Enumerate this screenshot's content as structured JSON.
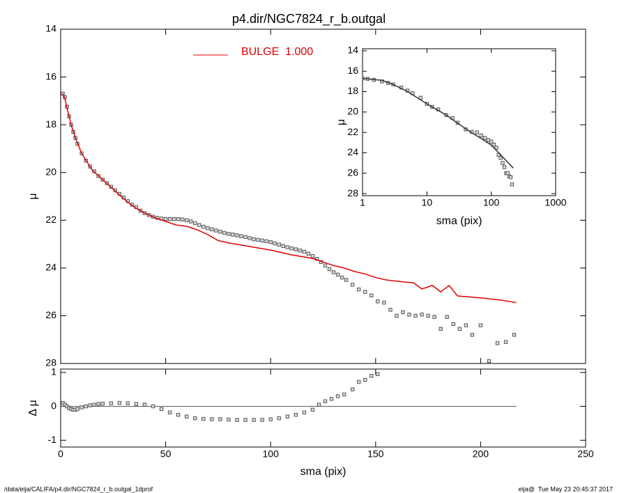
{
  "chart_data": [
    {
      "type": "scatter",
      "title": "p4.dir/NGC7824_r_b.outgal",
      "y_label": "μ",
      "legend": "top",
      "xlim": [
        0,
        250
      ],
      "xticks": [
        0,
        50,
        100,
        150,
        200,
        250
      ],
      "xtick_labels": false,
      "ylim": [
        28,
        14
      ],
      "yticks": [
        14,
        16,
        18,
        20,
        22,
        24,
        26,
        28
      ],
      "series": [
        {
          "mark": "square",
          "color": "#555555",
          "x": [
            1,
            2,
            3,
            4,
            5,
            6,
            7,
            8,
            10,
            12,
            14,
            16,
            18,
            20,
            22,
            24,
            26,
            28,
            30,
            32,
            34,
            36,
            38,
            40,
            42,
            44,
            46,
            48,
            50,
            52,
            54,
            56,
            58,
            60,
            62,
            64,
            66,
            68,
            70,
            72,
            74,
            76,
            78,
            80,
            82,
            84,
            86,
            88,
            90,
            92,
            94,
            96,
            98,
            100,
            102,
            104,
            106,
            108,
            110,
            112,
            114,
            116,
            118,
            120,
            122,
            124,
            126,
            128,
            130,
            132,
            134,
            136,
            139,
            142,
            145,
            148,
            151,
            154,
            157,
            160,
            163,
            166,
            169,
            172,
            175,
            178,
            181,
            184,
            187,
            190,
            193,
            196,
            200,
            204,
            208,
            212,
            216
          ],
          "values": [
            16.7,
            16.85,
            17.25,
            17.65,
            18.0,
            18.3,
            18.55,
            18.8,
            19.2,
            19.5,
            19.75,
            19.95,
            20.15,
            20.3,
            20.45,
            20.6,
            20.75,
            20.9,
            21.05,
            21.2,
            21.35,
            21.45,
            21.6,
            21.7,
            21.78,
            21.85,
            21.9,
            21.93,
            21.95,
            21.95,
            21.95,
            21.95,
            21.97,
            22.0,
            22.05,
            22.12,
            22.2,
            22.27,
            22.33,
            22.38,
            22.43,
            22.48,
            22.53,
            22.57,
            22.6,
            22.63,
            22.67,
            22.7,
            22.75,
            22.8,
            22.82,
            22.85,
            22.88,
            22.92,
            22.97,
            23.02,
            23.08,
            23.13,
            23.18,
            23.22,
            23.27,
            23.32,
            23.4,
            23.5,
            23.62,
            23.75,
            23.9,
            24.05,
            24.18,
            24.28,
            24.4,
            24.5,
            24.7,
            24.9,
            25.0,
            25.15,
            25.4,
            25.45,
            25.75,
            26.0,
            25.85,
            25.95,
            26.0,
            25.95,
            26.0,
            26.05,
            26.55,
            26.05,
            26.35,
            26.55,
            26.4,
            26.8,
            26.4,
            27.9,
            27.15,
            27.1,
            26.8
          ]
        },
        {
          "mark": "line",
          "name": "BULGE  1.000",
          "color": "#e00000",
          "x": [
            1,
            2,
            3,
            5,
            7,
            10,
            15,
            20,
            25,
            30,
            35,
            40,
            45,
            50,
            55,
            60,
            65,
            70,
            75,
            80,
            90,
            100,
            110,
            120,
            125,
            130,
            135,
            140,
            145,
            150,
            155,
            160,
            165,
            168,
            172,
            177,
            181,
            185,
            189,
            200,
            210,
            217
          ],
          "values": [
            16.7,
            16.9,
            17.3,
            18.0,
            18.55,
            19.2,
            19.9,
            20.3,
            20.7,
            21.1,
            21.45,
            21.7,
            21.9,
            22.05,
            22.2,
            22.25,
            22.4,
            22.6,
            22.85,
            22.95,
            23.1,
            23.25,
            23.45,
            23.6,
            23.75,
            23.9,
            24.0,
            24.15,
            24.25,
            24.4,
            24.5,
            24.55,
            24.6,
            24.62,
            24.88,
            24.73,
            25.0,
            24.73,
            25.17,
            25.25,
            25.35,
            25.45
          ]
        }
      ]
    },
    {
      "type": "scatter",
      "y_label": "Δ μ",
      "x_label": "sma (pix)",
      "xlim": [
        0,
        250
      ],
      "xticks": [
        0,
        50,
        100,
        150,
        200,
        250
      ],
      "ylim": [
        -1.2,
        1.1
      ],
      "yticks": [
        -1,
        0,
        1
      ],
      "zero_line": true,
      "series": [
        {
          "mark": "square",
          "color": "#555555",
          "x": [
            1,
            2,
            3,
            4,
            5,
            6,
            7,
            8,
            10,
            12,
            14,
            16,
            18,
            20,
            24,
            28,
            32,
            36,
            40,
            44,
            48,
            52,
            56,
            60,
            64,
            68,
            72,
            76,
            80,
            84,
            88,
            92,
            96,
            100,
            104,
            108,
            112,
            116,
            120,
            123,
            126,
            129,
            132,
            135,
            139,
            142,
            145,
            148,
            151
          ],
          "values": [
            0.1,
            0.05,
            0.0,
            -0.05,
            -0.08,
            -0.1,
            -0.1,
            -0.08,
            -0.03,
            0.0,
            0.03,
            0.05,
            0.07,
            0.08,
            0.09,
            0.1,
            0.09,
            0.07,
            0.05,
            0.0,
            -0.08,
            -0.18,
            -0.25,
            -0.3,
            -0.35,
            -0.37,
            -0.38,
            -0.38,
            -0.39,
            -0.4,
            -0.4,
            -0.4,
            -0.4,
            -0.38,
            -0.35,
            -0.3,
            -0.25,
            -0.18,
            -0.1,
            0.05,
            0.15,
            0.22,
            0.3,
            0.35,
            0.5,
            0.72,
            0.78,
            0.9,
            0.95
          ]
        }
      ]
    },
    {
      "type": "scatter",
      "y_label": "μ",
      "x_label": "sma (pix)",
      "xscale": "log",
      "xlim": [
        1,
        1000
      ],
      "xticks": [
        1,
        10,
        100,
        1000
      ],
      "ylim": [
        28.2,
        13.8
      ],
      "yticks": [
        14,
        16,
        18,
        20,
        22,
        24,
        26,
        28
      ],
      "series": [
        {
          "mark": "square",
          "color": "#555555",
          "x": [
            1,
            1.2,
            1.5,
            2,
            2.5,
            3,
            4,
            5,
            6,
            8,
            10,
            12,
            15,
            20,
            25,
            30,
            40,
            50,
            60,
            70,
            80,
            90,
            100,
            110,
            120,
            130,
            140,
            150,
            160,
            170,
            180,
            190,
            200,
            210
          ],
          "values": [
            16.7,
            16.75,
            16.85,
            17.0,
            17.15,
            17.3,
            17.6,
            17.9,
            18.15,
            18.6,
            19.2,
            19.5,
            19.75,
            20.3,
            20.6,
            21.05,
            21.7,
            21.95,
            22.0,
            22.3,
            22.55,
            22.75,
            22.9,
            23.2,
            23.5,
            24.2,
            24.5,
            25.0,
            25.4,
            26.0,
            26.0,
            26.3,
            26.4,
            27.1
          ]
        },
        {
          "mark": "line",
          "color": "#333333",
          "x": [
            1,
            2,
            3,
            5,
            10,
            20,
            30,
            50,
            70,
            100,
            150,
            220
          ],
          "values": [
            16.7,
            16.9,
            17.3,
            18.0,
            19.2,
            20.3,
            21.1,
            22.05,
            22.6,
            23.25,
            24.4,
            25.5
          ]
        }
      ]
    }
  ],
  "footer": {
    "left": "/data/eija/CALIFA/p4.dir/NGC7824_r_b.outgal_1dprof",
    "right": "eija@  Tue May 23 20:45:37 2017"
  }
}
